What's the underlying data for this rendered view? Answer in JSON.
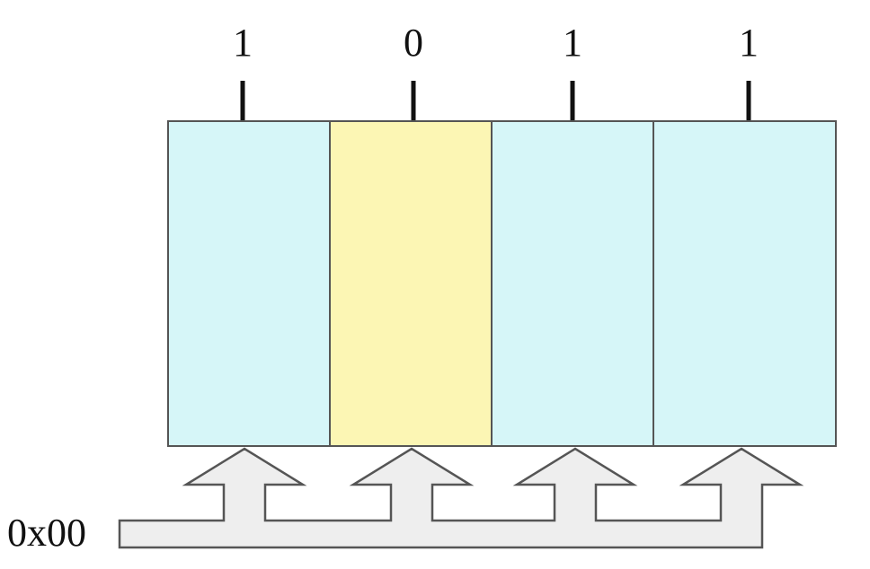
{
  "digits": [
    {
      "label": "1",
      "highlighted": false
    },
    {
      "label": "0",
      "highlighted": true
    },
    {
      "label": "1",
      "highlighted": false
    },
    {
      "label": "1",
      "highlighted": false
    }
  ],
  "bus": {
    "label": "0x00"
  }
}
